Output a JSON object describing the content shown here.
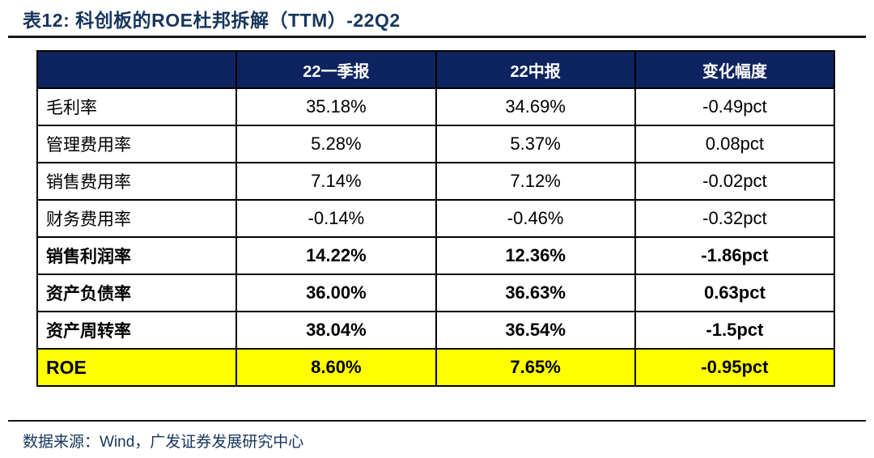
{
  "page": {
    "title": "表12:  科创板的ROE杜邦拆解（TTM）-22Q2",
    "source_note": "数据来源：Wind，广发证券发展研究中心"
  },
  "colors": {
    "header_bg": "#0e2460",
    "header_text": "#ffffff",
    "title_text": "#17365d",
    "highlight_bg": "#ffff00",
    "border": "#000000",
    "rule": "#161616"
  },
  "chart_data": {
    "type": "table",
    "title": "表12:  科创板的ROE杜邦拆解（TTM）-22Q2",
    "columns": [
      "",
      "22一季报",
      "22中报",
      "变化幅度"
    ],
    "categories": [
      "毛利率",
      "管理费用率",
      "销售费用率",
      "财务费用率",
      "销售利润率",
      "资产负债率",
      "资产周转率",
      "ROE"
    ],
    "series": [
      {
        "name": "22一季报",
        "values": [
          35.18,
          5.28,
          7.14,
          -0.14,
          14.22,
          36.0,
          38.04,
          8.6
        ]
      },
      {
        "name": "22中报",
        "values": [
          34.69,
          5.37,
          7.12,
          -0.46,
          12.36,
          36.63,
          36.54,
          7.65
        ]
      },
      {
        "name": "变化幅度(pct)",
        "values": [
          -0.49,
          0.08,
          -0.02,
          -0.32,
          -1.86,
          0.63,
          -1.5,
          -0.95
        ]
      }
    ],
    "rows": [
      {
        "label": "毛利率",
        "values": [
          "35.18%",
          "34.69%",
          "-0.49pct"
        ],
        "bold": false,
        "highlight": false
      },
      {
        "label": "管理费用率",
        "values": [
          "5.28%",
          "5.37%",
          "0.08pct"
        ],
        "bold": false,
        "highlight": false
      },
      {
        "label": "销售费用率",
        "values": [
          "7.14%",
          "7.12%",
          "-0.02pct"
        ],
        "bold": false,
        "highlight": false
      },
      {
        "label": "财务费用率",
        "values": [
          "-0.14%",
          "-0.46%",
          "-0.32pct"
        ],
        "bold": false,
        "highlight": false
      },
      {
        "label": "销售利润率",
        "values": [
          "14.22%",
          "12.36%",
          "-1.86pct"
        ],
        "bold": true,
        "highlight": false
      },
      {
        "label": "资产负债率",
        "values": [
          "36.00%",
          "36.63%",
          "0.63pct"
        ],
        "bold": true,
        "highlight": false
      },
      {
        "label": "资产周转率",
        "values": [
          "38.04%",
          "36.54%",
          "-1.5pct"
        ],
        "bold": true,
        "highlight": false
      },
      {
        "label": "ROE",
        "values": [
          "8.60%",
          "7.65%",
          "-0.95pct"
        ],
        "bold": true,
        "highlight": true
      }
    ],
    "legend_position": "none",
    "grid": true
  }
}
